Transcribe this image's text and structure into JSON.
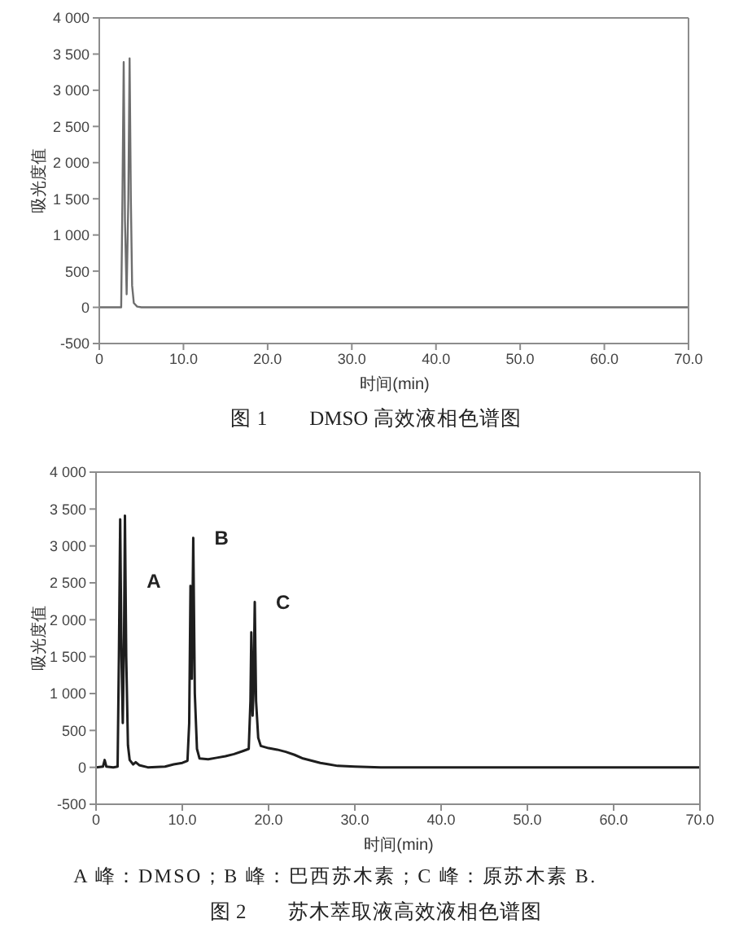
{
  "chart_data": [
    {
      "type": "line",
      "title": "图 1　　DMSO 高效液相色谱图",
      "xlabel": "时间(min)",
      "ylabel": "吸光度值",
      "color": "#6e6e6e",
      "x": [
        0,
        2.6,
        2.75,
        2.9,
        3.05,
        3.25,
        3.45,
        3.6,
        3.75,
        3.9,
        4.1,
        4.5,
        5,
        70
      ],
      "values": [
        0,
        0,
        1500,
        3390,
        1200,
        180,
        1500,
        3440,
        1500,
        300,
        60,
        10,
        0,
        0
      ],
      "xlim": [
        0,
        70
      ],
      "xticks": [
        0,
        {
          "value": 10,
          "label": "10.0"
        },
        {
          "value": 20,
          "label": "20.0"
        },
        {
          "value": 30,
          "label": "30.0"
        },
        {
          "value": 40,
          "label": "40.0"
        },
        {
          "value": 50,
          "label": "50.0"
        },
        {
          "value": 60,
          "label": "60.0"
        },
        {
          "value": 70,
          "label": "70.0"
        }
      ],
      "ylim": [
        -500,
        4000
      ],
      "yticks": [
        -500,
        0,
        500,
        {
          "value": 1000,
          "label": "1 000"
        },
        {
          "value": 1500,
          "label": "1 500"
        },
        {
          "value": 2000,
          "label": "2 000"
        },
        {
          "value": 2500,
          "label": "2 500"
        },
        {
          "value": 3000,
          "label": "3 000"
        },
        {
          "value": 3500,
          "label": "3 500"
        },
        {
          "value": 4000,
          "label": "4 000"
        }
      ]
    },
    {
      "type": "line",
      "title": "图 2　　苏木萃取液高效液相色谱图",
      "xlabel": "时间(min)",
      "ylabel": "吸光度值",
      "color": "#1e1e1e",
      "x": [
        0,
        0.8,
        1.0,
        1.2,
        2.0,
        2.5,
        2.65,
        2.8,
        2.95,
        3.1,
        3.25,
        3.35,
        3.5,
        3.7,
        3.9,
        4.3,
        4.6,
        5.0,
        6,
        8,
        9,
        10,
        10.6,
        10.8,
        10.95,
        11.1,
        11.27,
        11.45,
        11.7,
        12,
        13,
        14,
        15,
        16,
        17,
        17.7,
        17.9,
        18.0,
        18.15,
        18.25,
        18.4,
        18.55,
        18.8,
        19.1,
        20,
        21,
        22,
        23,
        24,
        25,
        26,
        27,
        28,
        30,
        33,
        35,
        70
      ],
      "values": [
        0,
        10,
        100,
        10,
        0,
        10,
        1500,
        3360,
        1500,
        600,
        1800,
        3410,
        1500,
        300,
        100,
        40,
        70,
        30,
        0,
        10,
        40,
        60,
        90,
        600,
        2460,
        1200,
        3110,
        1000,
        250,
        120,
        110,
        130,
        150,
        180,
        220,
        250,
        900,
        1830,
        700,
        1000,
        2240,
        900,
        400,
        290,
        260,
        240,
        210,
        170,
        120,
        90,
        60,
        40,
        20,
        10,
        0,
        0,
        0
      ],
      "xlim": [
        0,
        70
      ],
      "xticks": [
        0,
        {
          "value": 10,
          "label": "10.0"
        },
        {
          "value": 20,
          "label": "20.0"
        },
        {
          "value": 30,
          "label": "30.0"
        },
        {
          "value": 40,
          "label": "40.0"
        },
        {
          "value": 50,
          "label": "50.0"
        },
        {
          "value": 60,
          "label": "60.0"
        },
        {
          "value": 70,
          "label": "70.0"
        }
      ],
      "ylim": [
        -500,
        4000
      ],
      "yticks": [
        -500,
        0,
        500,
        {
          "value": 1000,
          "label": "1 000"
        },
        {
          "value": 1500,
          "label": "1 500"
        },
        {
          "value": 2000,
          "label": "2 000"
        },
        {
          "value": 2500,
          "label": "2 500"
        },
        {
          "value": 3000,
          "label": "3 000"
        },
        {
          "value": 3500,
          "label": "3 500"
        },
        {
          "value": 4000,
          "label": "4 000"
        }
      ],
      "annotations": [
        {
          "text": "A",
          "x": 3.42,
          "y": 2520
        },
        {
          "text": "B",
          "x": 11.27,
          "y": 3110
        },
        {
          "text": "C",
          "x": 18.4,
          "y": 2240
        },
        "A 峰：DMSO；B 峰：巴西苏木素；C 峰：原苏木素 B."
      ]
    }
  ]
}
